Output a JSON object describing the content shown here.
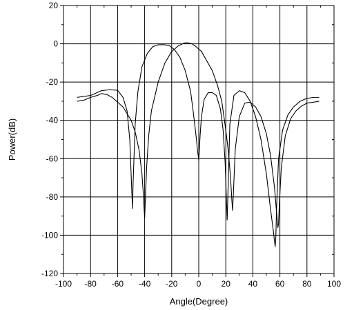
{
  "chart_data": {
    "type": "line",
    "title": "",
    "xlabel": "Angle(Degree)",
    "ylabel": "Power(dB)",
    "xlim": [
      -100,
      100
    ],
    "ylim": [
      -120,
      20
    ],
    "x_ticks": [
      -100,
      -80,
      -60,
      -40,
      -20,
      0,
      20,
      40,
      60,
      80,
      100
    ],
    "y_ticks": [
      20,
      0,
      -20,
      -40,
      -60,
      -80,
      -100,
      -120
    ],
    "grid": true,
    "legend": "none",
    "line_color": "#000000",
    "series": [
      {
        "x": [
          -90,
          -80,
          -72,
          -66,
          -60,
          -56,
          -53,
          -51,
          -50,
          -49,
          -48.5,
          -47,
          -45,
          -42,
          -38,
          -34,
          -30,
          -26,
          -22,
          -18,
          -14,
          -10,
          -6,
          -4,
          -2,
          -1,
          0,
          1,
          2,
          4,
          7,
          10,
          13,
          16,
          18,
          19.5,
          20.5,
          21,
          21.5,
          23,
          26,
          30,
          34,
          38,
          42,
          46,
          50,
          53,
          55,
          56.5,
          57,
          57.5,
          59,
          62,
          66,
          70,
          75,
          80,
          85,
          89
        ],
        "y": [
          -28,
          -27,
          -24.5,
          -24,
          -24.3,
          -28,
          -35,
          -50,
          -68,
          -86,
          -72,
          -42,
          -25,
          -12,
          -5,
          -1.5,
          -0.5,
          -0.5,
          -0.8,
          -3,
          -7,
          -14,
          -25,
          -36,
          -48,
          -55,
          -61,
          -48,
          -38,
          -29,
          -25.5,
          -25.5,
          -27,
          -34,
          -45,
          -62,
          -82,
          -92,
          -80,
          -42,
          -27,
          -24.5,
          -25.5,
          -30,
          -38,
          -50,
          -68,
          -86,
          -97,
          -106,
          -101,
          -86,
          -60,
          -45,
          -37,
          -33,
          -30,
          -28.5,
          -28,
          -28
        ]
      },
      {
        "x": [
          -90,
          -85,
          -80,
          -75,
          -72,
          -68,
          -64,
          -60,
          -56,
          -50,
          -47,
          -44,
          -42,
          -41,
          -40.5,
          -40,
          -39.5,
          -38.5,
          -37,
          -35,
          -30,
          -25,
          -20,
          -15,
          -12,
          -10,
          -8,
          -5,
          -2,
          2,
          6,
          10,
          14,
          17,
          19,
          20.5,
          22,
          23.5,
          24.5,
          25,
          25.5,
          27,
          30,
          34,
          38,
          42,
          46,
          50,
          53,
          56,
          57.5,
          58.5,
          59,
          59.5,
          61,
          64,
          68,
          72,
          76,
          80,
          85,
          89
        ],
        "y": [
          -30,
          -29.5,
          -28,
          -27,
          -26,
          -26.5,
          -28,
          -30.5,
          -33,
          -40,
          -46,
          -56,
          -68,
          -78,
          -85,
          -91,
          -82,
          -64,
          -48,
          -35,
          -20,
          -10,
          -4,
          -1,
          0,
          0.5,
          0.5,
          0,
          -1.5,
          -4,
          -9,
          -14,
          -22,
          -30,
          -40,
          -48,
          -57,
          -70,
          -82,
          -87,
          -80,
          -55,
          -38,
          -31,
          -30.5,
          -33,
          -38,
          -47,
          -58,
          -75,
          -88,
          -96,
          -94,
          -85,
          -65,
          -48,
          -39,
          -35,
          -32.5,
          -31,
          -30.5,
          -30
        ]
      }
    ]
  }
}
